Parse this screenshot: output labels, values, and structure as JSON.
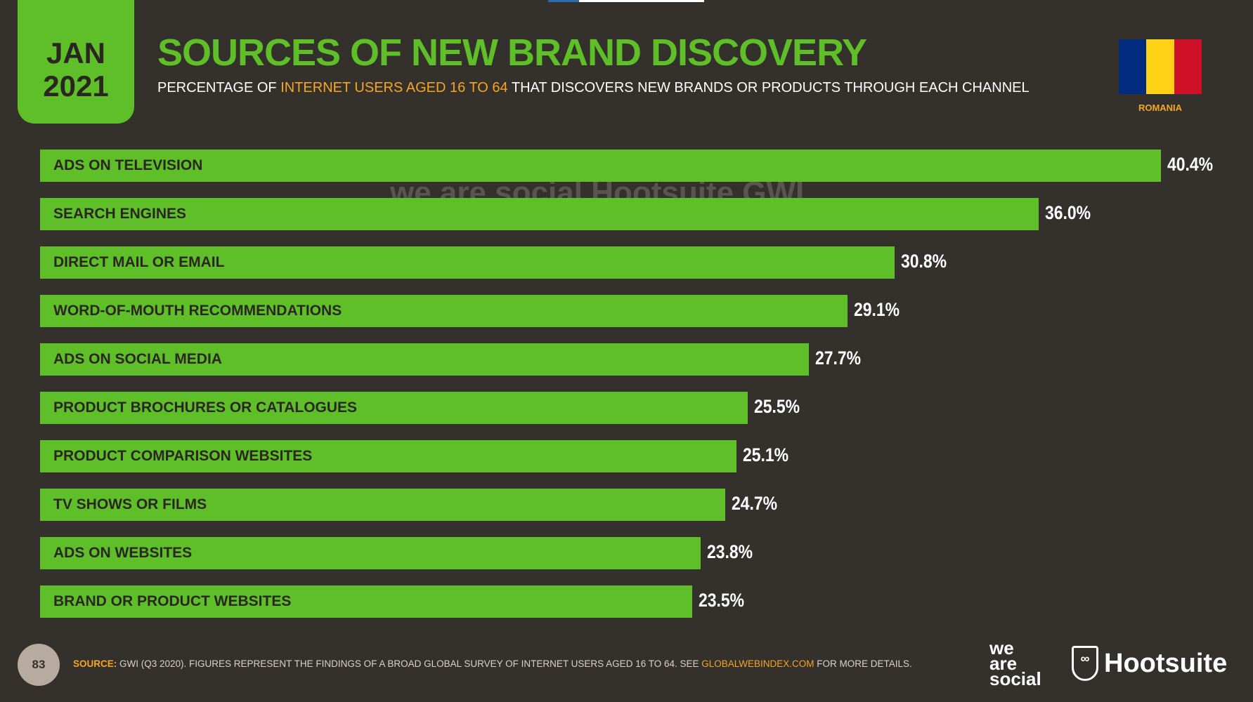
{
  "header": {
    "month": "JAN",
    "year": "2021",
    "title": "SOURCES OF NEW BRAND DISCOVERY",
    "subtitle_pre": "PERCENTAGE OF ",
    "subtitle_highlight": "INTERNET USERS AGED 16 TO 64",
    "subtitle_post": " THAT DISCOVERS NEW BRANDS OR PRODUCTS THROUGH EACH CHANNEL",
    "country": "ROMANIA",
    "flag_colors": [
      "#002b7f",
      "#fcd116",
      "#ce1126"
    ]
  },
  "colors": {
    "bar": "#5ebf28",
    "background": "#34302c",
    "accent": "#f5a623"
  },
  "chart_data": {
    "type": "bar",
    "orientation": "horizontal",
    "title": "SOURCES OF NEW BRAND DISCOVERY",
    "categories": [
      "ADS ON TELEVISION",
      "SEARCH ENGINES",
      "DIRECT MAIL OR EMAIL",
      "WORD-OF-MOUTH RECOMMENDATIONS",
      "ADS ON SOCIAL MEDIA",
      "PRODUCT BROCHURES OR CATALOGUES",
      "PRODUCT COMPARISON WEBSITES",
      "TV SHOWS OR FILMS",
      "ADS ON WEBSITES",
      "BRAND OR PRODUCT WEBSITES"
    ],
    "values": [
      40.4,
      36.0,
      30.8,
      29.1,
      27.7,
      25.5,
      25.1,
      24.7,
      23.8,
      23.5
    ],
    "value_labels": [
      "40.4%",
      "36.0%",
      "30.8%",
      "29.1%",
      "27.7%",
      "25.5%",
      "25.1%",
      "24.7%",
      "23.8%",
      "23.5%"
    ],
    "xlim": [
      0,
      40.4
    ]
  },
  "watermark": "we are social  Hootsuite  GWI.",
  "footer": {
    "page": "83",
    "source_label": "SOURCE:",
    "source_text": " GWI (Q3 2020). FIGURES REPRESENT THE FINDINGS OF A BROAD GLOBAL SURVEY OF INTERNET USERS AGED 16 TO 64. SEE ",
    "source_link": "GLOBALWEBINDEX.COM",
    "source_end": " FOR MORE DETAILS.",
    "logo1": "we are social",
    "logo2": "Hootsuite"
  }
}
